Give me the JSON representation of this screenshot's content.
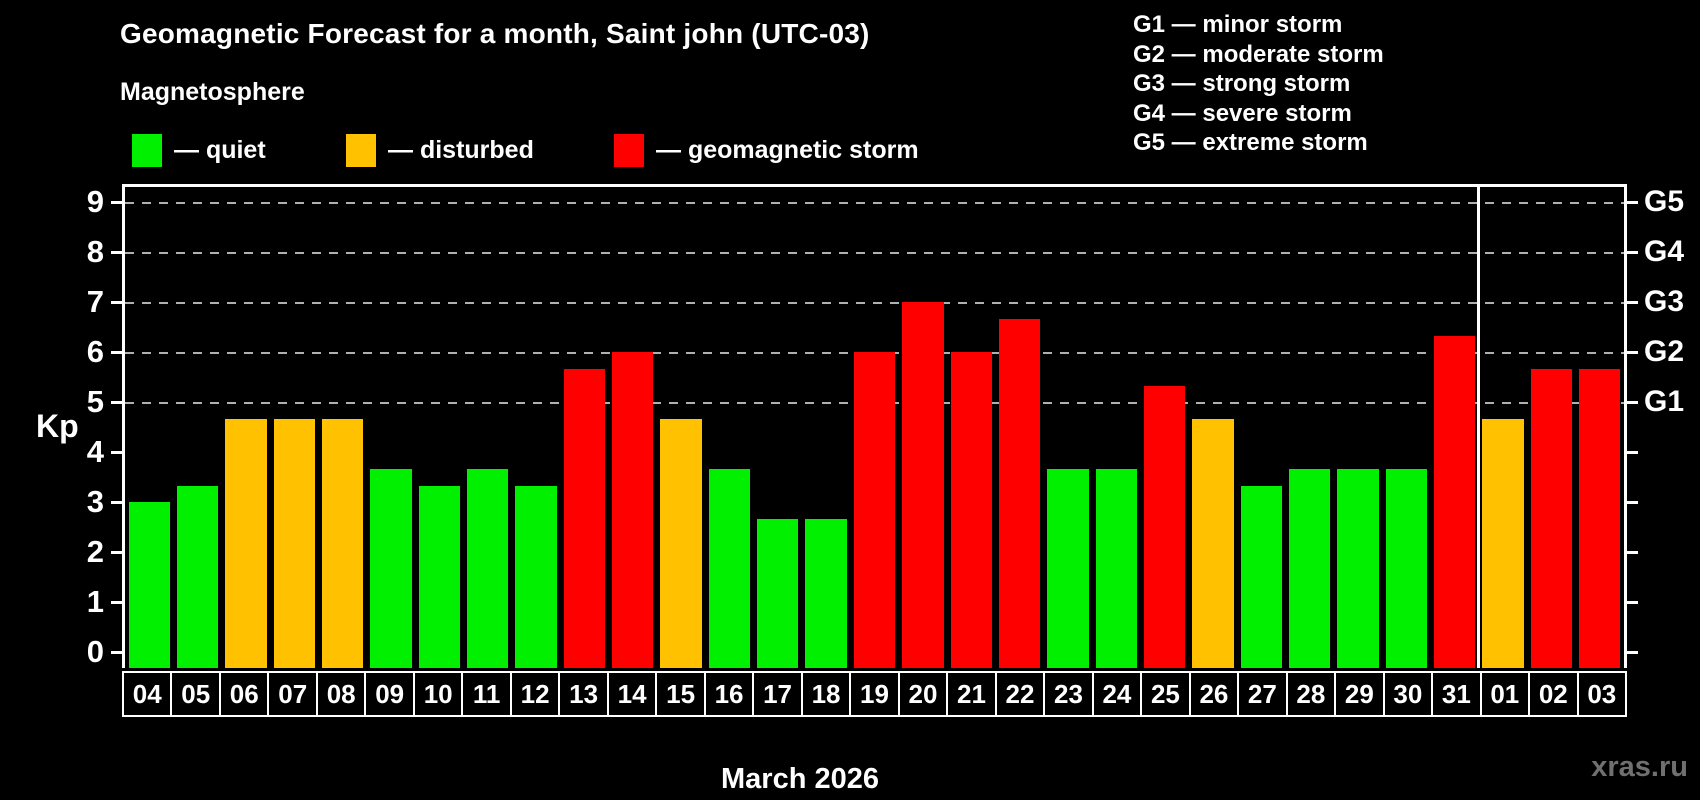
{
  "title": "Geomagnetic Forecast for a month, Saint john (UTC-03)",
  "subtitle": "Magnetosphere",
  "legend": {
    "items": [
      {
        "id": "quiet",
        "label": "— quiet",
        "color": "#00f000"
      },
      {
        "id": "disturbed",
        "label": "— disturbed",
        "color": "#ffc100"
      },
      {
        "id": "storm",
        "label": "— geomagnetic storm",
        "color": "#ff0000"
      }
    ]
  },
  "g_legend": [
    "G1 — minor storm",
    "G2 — moderate storm",
    "G3 — strong storm",
    "G4 — severe storm",
    "G5 — extreme storm"
  ],
  "watermark": "xras.ru",
  "colors": {
    "quiet": "#00f000",
    "disturbed": "#ffc100",
    "storm": "#ff0000",
    "grid": "#b0b0b0",
    "frame": "#ffffff",
    "text": "#ffffff",
    "watermark": "#707070",
    "background": "#000000"
  },
  "chart_data": {
    "type": "bar",
    "title": "Geomagnetic Forecast for a month, Saint john (UTC-03)",
    "xlabel": "March 2026",
    "ylabel": "Kp",
    "ylim": [
      0,
      9
    ],
    "yticks": [
      0,
      1,
      2,
      3,
      4,
      5,
      6,
      7,
      8,
      9
    ],
    "gridlines_kp": [
      5,
      6,
      7,
      8,
      9
    ],
    "right_axis": [
      {
        "kp": 5,
        "label": "G1"
      },
      {
        "kp": 6,
        "label": "G2"
      },
      {
        "kp": 7,
        "label": "G3"
      },
      {
        "kp": 8,
        "label": "G4"
      },
      {
        "kp": 9,
        "label": "G5"
      }
    ],
    "categories": [
      "04",
      "05",
      "06",
      "07",
      "08",
      "09",
      "10",
      "11",
      "12",
      "13",
      "14",
      "15",
      "16",
      "17",
      "18",
      "19",
      "20",
      "21",
      "22",
      "23",
      "24",
      "25",
      "26",
      "27",
      "28",
      "29",
      "30",
      "31",
      "01",
      "02",
      "03"
    ],
    "values": [
      3.0,
      3.33,
      4.67,
      4.67,
      4.67,
      3.67,
      3.33,
      3.67,
      3.33,
      5.67,
      6.0,
      4.67,
      3.67,
      2.67,
      2.67,
      6.0,
      7.0,
      6.0,
      6.67,
      3.67,
      3.67,
      5.33,
      4.67,
      3.33,
      3.67,
      3.67,
      3.67,
      6.33,
      4.67,
      5.67,
      5.67
    ],
    "statuses": [
      "quiet",
      "quiet",
      "disturbed",
      "disturbed",
      "disturbed",
      "quiet",
      "quiet",
      "quiet",
      "quiet",
      "storm",
      "storm",
      "disturbed",
      "quiet",
      "quiet",
      "quiet",
      "storm",
      "storm",
      "storm",
      "storm",
      "quiet",
      "quiet",
      "storm",
      "disturbed",
      "quiet",
      "quiet",
      "quiet",
      "quiet",
      "storm",
      "disturbed",
      "storm",
      "storm"
    ],
    "separator_before_index": 28,
    "legend_position": "top-left"
  }
}
